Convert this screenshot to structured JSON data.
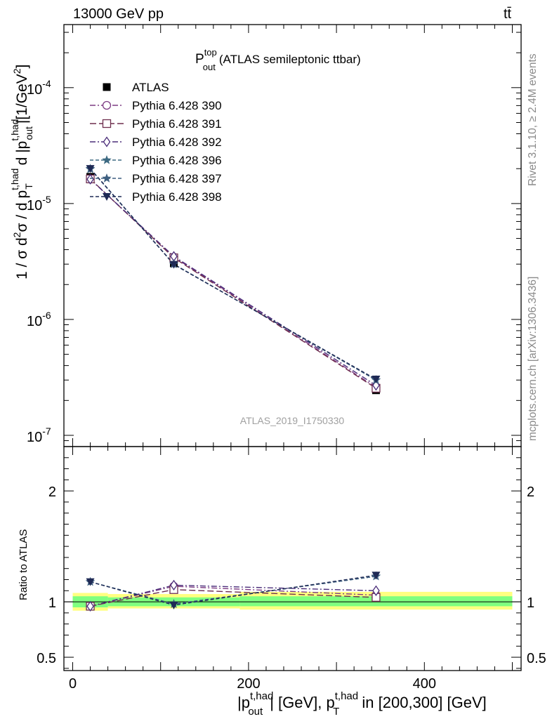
{
  "header": {
    "energy": "13000 GeV pp",
    "process": "tt̄",
    "side_rivet": "Rivet 3.1.10, ≥ 2.4M events",
    "side_mcplots": "mcplots.cern.ch [arXiv:1306.3436]",
    "analysis_id": "ATLAS_2019_I1750330"
  },
  "plot_title": {
    "main": "P",
    "sup": "top",
    "sub": "out",
    "rest": "(ATLAS semileptonic ttbar)"
  },
  "ylabel_parts": {
    "a": "1 / σ d",
    "b": "2",
    "c": "σ / d p",
    "d": "t,had",
    "e": "T",
    "f": " d |p",
    "g": "t,had",
    "h": "out",
    "i": "|[1/GeV",
    "j": "2",
    "k": "]"
  },
  "ratio_ylabel": "Ratio to ATLAS",
  "xlabel_parts": {
    "a": "|p",
    "b": "t,had",
    "c": "out",
    "d": "| [GeV], p",
    "e": "t,had",
    "f": "T",
    "g": " in [200,300] [GeV]"
  },
  "colors": {
    "data": "#000000",
    "p390": "#7d3c84",
    "p391": "#6e2e4e",
    "p392": "#4b2e7a",
    "p396": "#3d6a82",
    "p397": "#3e5f80",
    "p398": "#1f2a55",
    "band_inner": "#7fff7f",
    "band_outer": "#ffff80"
  },
  "chart_data": {
    "type": "line",
    "x": [
      20,
      115,
      345
    ],
    "x_ticks": [
      0,
      200,
      400
    ],
    "xlim": [
      -10,
      510
    ],
    "main": {
      "ylim": [
        8e-08,
        0.00035
      ],
      "log_y": true,
      "y_tick_labels": [
        {
          "exp": "-7",
          "value": 1e-07
        },
        {
          "exp": "-6",
          "value": 1e-06
        },
        {
          "exp": "-5",
          "value": 1e-05
        },
        {
          "exp": "-4",
          "value": 0.0001
        }
      ],
      "series": [
        {
          "name": "ATLAS",
          "key": "data",
          "marker": "square-filled",
          "values": [
            1.7e-05,
            3.05e-06,
            2.45e-07
          ]
        },
        {
          "name": "Pythia 6.428 390",
          "key": "p390",
          "marker": "circle",
          "dash": "8,3,2,3",
          "values": [
            1.62e-05,
            3.45e-06,
            2.6e-07
          ]
        },
        {
          "name": "Pythia 6.428 391",
          "key": "p391",
          "marker": "square",
          "dash": "9,4",
          "values": [
            1.63e-05,
            3.4e-06,
            2.55e-07
          ]
        },
        {
          "name": "Pythia 6.428 392",
          "key": "p392",
          "marker": "diamond",
          "dash": "8,3,2,3",
          "values": [
            1.62e-05,
            3.5e-06,
            2.7e-07
          ]
        },
        {
          "name": "Pythia 6.428 396",
          "key": "p396",
          "marker": "star",
          "dash": "5,3",
          "values": [
            2e-05,
            3e-06,
            3e-07
          ]
        },
        {
          "name": "Pythia 6.428 397",
          "key": "p397",
          "marker": "star",
          "dash": "5,3",
          "values": [
            1.98e-05,
            3e-06,
            3e-07
          ]
        },
        {
          "name": "Pythia 6.428 398",
          "key": "p398",
          "marker": "triangle-down",
          "dash": "5,3",
          "values": [
            2e-05,
            2.98e-06,
            3.05e-07
          ]
        }
      ]
    },
    "ratio": {
      "ylim": [
        0.38,
        2.4
      ],
      "y_tick_labels": [
        "0.5",
        "1",
        "2"
      ],
      "y_tick_values": [
        0.5,
        1,
        2
      ],
      "bands": [
        {
          "x": [
            0,
            40
          ],
          "inner": [
            0.95,
            1.05
          ],
          "outer": [
            0.92,
            1.08
          ]
        },
        {
          "x": [
            40,
            190
          ],
          "inner": [
            0.96,
            1.04
          ],
          "outer": [
            0.94,
            1.07
          ]
        },
        {
          "x": [
            190,
            500
          ],
          "inner": [
            0.96,
            1.05
          ],
          "outer": [
            0.93,
            1.09
          ]
        }
      ],
      "series": [
        {
          "key": "p390",
          "marker": "circle",
          "dash": "8,3,2,3",
          "values": [
            0.96,
            1.14,
            1.06
          ]
        },
        {
          "key": "p391",
          "marker": "square",
          "dash": "9,4",
          "values": [
            0.96,
            1.11,
            1.04
          ]
        },
        {
          "key": "p392",
          "marker": "diamond",
          "dash": "8,3,2,3",
          "values": [
            0.96,
            1.15,
            1.1
          ]
        },
        {
          "key": "p396",
          "marker": "star",
          "dash": "5,3",
          "values": [
            1.18,
            0.98,
            1.23
          ]
        },
        {
          "key": "p397",
          "marker": "star",
          "dash": "5,3",
          "values": [
            1.18,
            0.98,
            1.23
          ]
        },
        {
          "key": "p398",
          "marker": "triangle-down",
          "dash": "5,3",
          "values": [
            1.18,
            0.97,
            1.24
          ]
        }
      ]
    }
  }
}
